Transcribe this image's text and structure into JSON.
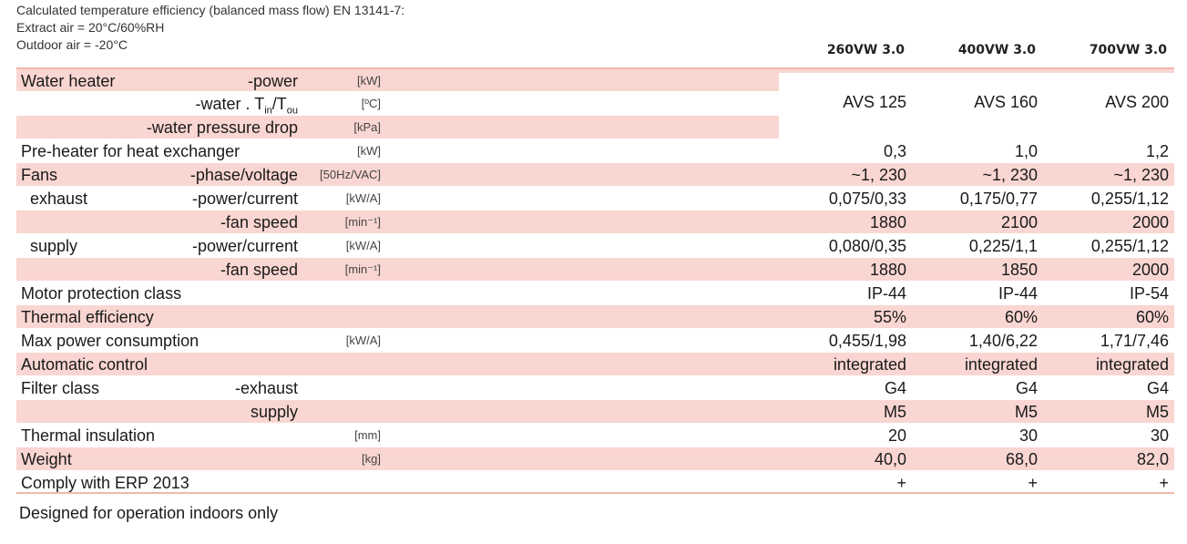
{
  "header": {
    "line1": "Calculated temperature efficiency (balanced mass flow) EN 13141-7:",
    "line2": "Extract air = 20°C/60%RH",
    "line3": "Outdoor air = -20°C"
  },
  "models": [
    "260VW 3.0",
    "400VW 3.0",
    "700VW 3.0"
  ],
  "water_heater": {
    "label": "Water heater",
    "power_sub": "-power",
    "power_unit": "[kW]",
    "water_sub_prefix": "-water  . T",
    "water_sub_in": "in",
    "water_sub_mid": "/T",
    "water_sub_out": "ou",
    "water_unit": "[ºC]",
    "pressure_sub": "-water  pressure drop",
    "pressure_unit": "[kPa]",
    "values": [
      "AVS 125",
      "AVS 160",
      "AVS 200"
    ]
  },
  "rows": [
    {
      "label": "Pre-heater for heat exchanger",
      "sub": "",
      "unit": "[kW]",
      "values": [
        "0,3",
        "1,0",
        "1,2"
      ],
      "pink": false
    },
    {
      "label": "Fans",
      "sub": "-phase/voltage",
      "unit": "[50Hz/VAC]",
      "values": [
        "~1, 230",
        "~1, 230",
        "~1, 230"
      ],
      "pink": true
    },
    {
      "label": "  exhaust",
      "sub": "-power/current",
      "unit": "[kW/A]",
      "values": [
        "0,075/0,33",
        "0,175/0,77",
        "0,255/1,12"
      ],
      "pink": false
    },
    {
      "label": "",
      "sub": "-fan speed",
      "unit": "[min⁻¹]",
      "values": [
        "1880",
        "2100",
        "2000"
      ],
      "pink": true
    },
    {
      "label": "  supply",
      "sub": "-power/current",
      "unit": "[kW/A]",
      "values": [
        "0,080/0,35",
        "0,225/1,1",
        "0,255/1,12"
      ],
      "pink": false
    },
    {
      "label": "",
      "sub": "-fan speed",
      "unit": "[min⁻¹]",
      "values": [
        "1880",
        "1850",
        "2000"
      ],
      "pink": true
    },
    {
      "label": "Motor protection class",
      "sub": "",
      "unit": "",
      "values": [
        "IP-44",
        "IP-44",
        "IP-54"
      ],
      "pink": false
    },
    {
      "label": "Thermal efficiency",
      "sub": "",
      "unit": "",
      "values": [
        "55%",
        "60%",
        "60%"
      ],
      "pink": true
    },
    {
      "label": "Max power consumption",
      "sub": "",
      "unit": "[kW/A]",
      "values": [
        "0,455/1,98",
        "1,40/6,22",
        "1,71/7,46"
      ],
      "pink": false
    },
    {
      "label": "Automatic control",
      "sub": "",
      "unit": "",
      "values": [
        "integrated",
        "integrated",
        "integrated"
      ],
      "pink": true
    },
    {
      "label": "Filter class",
      "sub": "-exhaust",
      "unit": "",
      "values": [
        "G4",
        "G4",
        "G4"
      ],
      "pink": false
    },
    {
      "label": "",
      "sub": "supply",
      "unit": "",
      "values": [
        "M5",
        "M5",
        "M5"
      ],
      "pink": true
    },
    {
      "label": "Thermal insulation",
      "sub": "",
      "unit": "[mm]",
      "values": [
        "20",
        "30",
        "30"
      ],
      "pink": false
    },
    {
      "label": "Weight",
      "sub": "",
      "unit": "[kg]",
      "values": [
        "40,0",
        "68,0",
        "82,0"
      ],
      "pink": true
    },
    {
      "label": "Comply with ERP 2013",
      "sub": "",
      "unit": "",
      "values": [
        "+",
        "+",
        "+"
      ],
      "pink": false
    }
  ],
  "footer": "Designed for operation indoors only",
  "colors": {
    "row_pink": "#f9d6d1",
    "line_pink": "#f4b6ad"
  }
}
